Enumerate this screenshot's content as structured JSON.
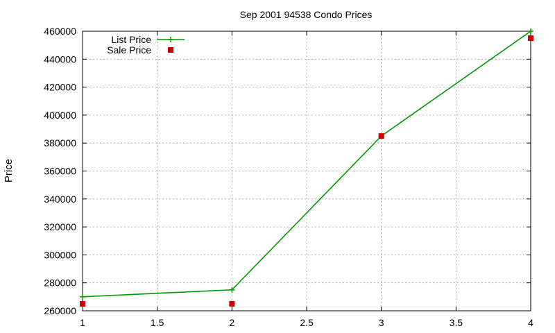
{
  "chart_data": {
    "type": "line",
    "title": "Sep 2001 94538 Condo Prices",
    "xlabel": "",
    "ylabel": "Price",
    "xlim": [
      1,
      4
    ],
    "ylim": [
      260000,
      460000
    ],
    "x_ticks": [
      "1",
      "1.5",
      "2",
      "2.5",
      "3",
      "3.5",
      "4"
    ],
    "y_ticks": [
      "260000",
      "280000",
      "300000",
      "320000",
      "340000",
      "360000",
      "380000",
      "400000",
      "420000",
      "440000",
      "460000"
    ],
    "grid": true,
    "legend_position": "top-left",
    "series": [
      {
        "name": "List Price",
        "style": "lines+points",
        "marker": "plus",
        "color": "#009900",
        "points": [
          [
            1,
            270000
          ],
          [
            2,
            275000
          ],
          [
            3,
            385000
          ],
          [
            4,
            460000
          ]
        ]
      },
      {
        "name": "Sale Price",
        "style": "points",
        "marker": "square",
        "color": "#cc0000",
        "points": [
          [
            1,
            265000
          ],
          [
            2,
            265000
          ],
          [
            3,
            385000
          ],
          [
            4,
            455000
          ]
        ]
      }
    ]
  }
}
